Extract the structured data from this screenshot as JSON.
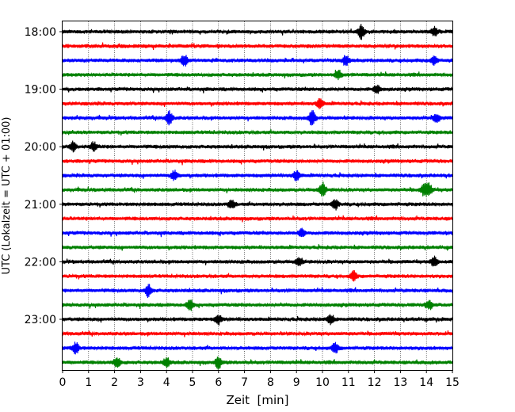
{
  "chart_data": {
    "type": "line",
    "xlabel": "Zeit  [min]",
    "ylabel": "UTC (Lokalzeit = UTC + 01:00)",
    "xlim": [
      0,
      15
    ],
    "x_ticks": [
      0,
      1,
      2,
      3,
      4,
      5,
      6,
      7,
      8,
      9,
      10,
      11,
      12,
      13,
      14,
      15
    ],
    "y_tick_labels": [
      "18:00",
      "19:00",
      "20:00",
      "21:00",
      "22:00",
      "23:00"
    ],
    "trace_interval_min": 15,
    "trace_start_times": [
      "18:00",
      "18:15",
      "18:30",
      "18:45",
      "19:00",
      "19:15",
      "19:30",
      "19:45",
      "20:00",
      "20:15",
      "20:30",
      "20:45",
      "21:00",
      "21:15",
      "21:30",
      "21:45",
      "22:00",
      "22:15",
      "22:30",
      "22:45",
      "23:00",
      "23:15",
      "23:30",
      "23:45"
    ],
    "trace_colors": [
      "#000000",
      "#ff0000",
      "#0000ff",
      "#008000"
    ],
    "vertical_grid": "dotted",
    "events": [
      {
        "trace": 0,
        "t": 11.5,
        "amp": 2.2
      },
      {
        "trace": 0,
        "t": 14.3,
        "amp": 1.4
      },
      {
        "trace": 2,
        "t": 4.7,
        "amp": 1.6
      },
      {
        "trace": 2,
        "t": 10.9,
        "amp": 1.5
      },
      {
        "trace": 2,
        "t": 14.3,
        "amp": 1.3
      },
      {
        "trace": 3,
        "t": 10.6,
        "amp": 1.4
      },
      {
        "trace": 4,
        "t": 12.1,
        "amp": 1.3
      },
      {
        "trace": 5,
        "t": 9.9,
        "amp": 1.5
      },
      {
        "trace": 6,
        "t": 4.1,
        "amp": 2.0
      },
      {
        "trace": 6,
        "t": 9.6,
        "amp": 2.4
      },
      {
        "trace": 6,
        "t": 14.4,
        "amp": 1.3
      },
      {
        "trace": 8,
        "t": 0.4,
        "amp": 1.6
      },
      {
        "trace": 8,
        "t": 1.2,
        "amp": 1.4
      },
      {
        "trace": 10,
        "t": 4.3,
        "amp": 1.5
      },
      {
        "trace": 10,
        "t": 9.0,
        "amp": 1.5
      },
      {
        "trace": 11,
        "t": 10.0,
        "amp": 2.2
      },
      {
        "trace": 11,
        "t": 13.9,
        "amp": 1.7
      },
      {
        "trace": 11,
        "t": 14.1,
        "amp": 1.7
      },
      {
        "trace": 12,
        "t": 6.5,
        "amp": 1.4
      },
      {
        "trace": 12,
        "t": 10.5,
        "amp": 1.4
      },
      {
        "trace": 14,
        "t": 9.2,
        "amp": 1.3
      },
      {
        "trace": 16,
        "t": 9.1,
        "amp": 1.3
      },
      {
        "trace": 16,
        "t": 14.3,
        "amp": 1.4
      },
      {
        "trace": 17,
        "t": 11.2,
        "amp": 1.4
      },
      {
        "trace": 18,
        "t": 3.3,
        "amp": 1.8
      },
      {
        "trace": 19,
        "t": 4.9,
        "amp": 1.6
      },
      {
        "trace": 19,
        "t": 14.1,
        "amp": 1.3
      },
      {
        "trace": 20,
        "t": 6.0,
        "amp": 1.4
      },
      {
        "trace": 20,
        "t": 10.3,
        "amp": 1.4
      },
      {
        "trace": 22,
        "t": 0.5,
        "amp": 1.8
      },
      {
        "trace": 22,
        "t": 10.5,
        "amp": 1.6
      },
      {
        "trace": 23,
        "t": 2.1,
        "amp": 1.6
      },
      {
        "trace": 23,
        "t": 6.0,
        "amp": 1.7
      },
      {
        "trace": 23,
        "t": 4.0,
        "amp": 1.4
      }
    ]
  }
}
